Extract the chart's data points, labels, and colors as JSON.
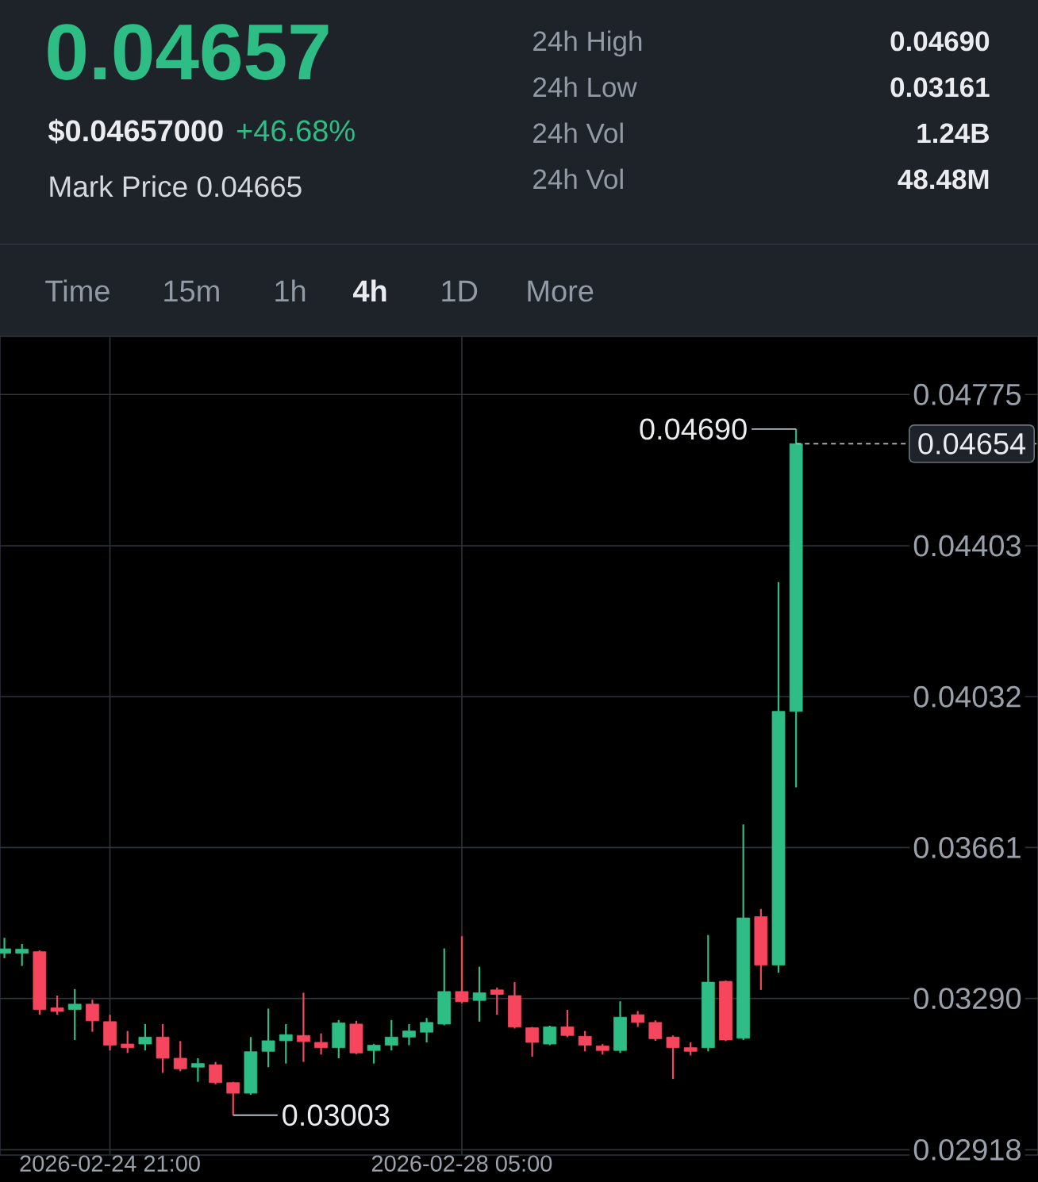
{
  "chart_data": {
    "type": "candlestick",
    "title": "0.04657",
    "annotations": [
      "$0.04657000",
      "+46.68%",
      "Mark Price 0.04665",
      "24h High",
      "0.04690",
      "24h Low",
      "0.03161",
      "24h Vol",
      "1.24B",
      "24h Vol",
      "48.48M",
      "Time",
      "15m",
      "1h",
      "4h",
      "1D",
      "More",
      {
        "text": "0.04690",
        "x": "2026-03-03T09:00",
        "y": 0.0469
      },
      {
        "text": "0.03003",
        "x": "2026-02-26T01:00",
        "y": 0.03003
      }
    ],
    "x": [
      "2026-02-23T21:00",
      "2026-02-24T01:00",
      "2026-02-24T05:00",
      "2026-02-24T09:00",
      "2026-02-24T13:00",
      "2026-02-24T17:00",
      "2026-02-24T21:00",
      "2026-02-25T01:00",
      "2026-02-25T05:00",
      "2026-02-25T09:00",
      "2026-02-25T13:00",
      "2026-02-25T17:00",
      "2026-02-25T21:00",
      "2026-02-26T01:00",
      "2026-02-26T05:00",
      "2026-02-26T09:00",
      "2026-02-26T13:00",
      "2026-02-26T17:00",
      "2026-02-26T21:00",
      "2026-02-27T01:00",
      "2026-02-27T05:00",
      "2026-02-27T09:00",
      "2026-02-27T13:00",
      "2026-02-27T17:00",
      "2026-02-27T21:00",
      "2026-02-28T01:00",
      "2026-02-28T05:00",
      "2026-02-28T09:00",
      "2026-02-28T13:00",
      "2026-02-28T17:00",
      "2026-02-28T21:00",
      "2026-03-01T01:00",
      "2026-03-01T05:00",
      "2026-03-01T09:00",
      "2026-03-01T13:00",
      "2026-03-01T17:00",
      "2026-03-01T21:00",
      "2026-03-02T01:00",
      "2026-03-02T05:00",
      "2026-03-02T09:00",
      "2026-03-02T13:00",
      "2026-03-02T17:00",
      "2026-03-02T21:00",
      "2026-03-03T01:00",
      "2026-03-03T05:00",
      "2026-03-03T09:00"
    ],
    "ohlc": [
      [
        0.03401,
        0.03439,
        0.03389,
        0.03412
      ],
      [
        0.03401,
        0.03424,
        0.0337,
        0.03411
      ],
      [
        0.03405,
        0.03408,
        0.0325,
        0.03263
      ],
      [
        0.03267,
        0.03297,
        0.0325,
        0.03258
      ],
      [
        0.03263,
        0.03313,
        0.03188,
        0.03276
      ],
      [
        0.03276,
        0.03287,
        0.03208,
        0.03235
      ],
      [
        0.03233,
        0.0325,
        0.03162,
        0.03175
      ],
      [
        0.03178,
        0.0321,
        0.03156,
        0.03169
      ],
      [
        0.03178,
        0.03227,
        0.03162,
        0.03195
      ],
      [
        0.03195,
        0.03227,
        0.03107,
        0.03143
      ],
      [
        0.03143,
        0.03185,
        0.03111,
        0.03117
      ],
      [
        0.03121,
        0.03143,
        0.03085,
        0.0313
      ],
      [
        0.03127,
        0.03134,
        0.03079,
        0.03083
      ],
      [
        0.03083,
        0.03085,
        0.03003,
        0.03057
      ],
      [
        0.03057,
        0.03195,
        0.03053,
        0.03159
      ],
      [
        0.0316,
        0.03265,
        0.03121,
        0.03186
      ],
      [
        0.03186,
        0.03227,
        0.0313,
        0.03201
      ],
      [
        0.03199,
        0.03304,
        0.03134,
        0.03184
      ],
      [
        0.03182,
        0.03204,
        0.03152,
        0.03169
      ],
      [
        0.03169,
        0.03237,
        0.03143,
        0.0323
      ],
      [
        0.03227,
        0.03235,
        0.03153,
        0.03156
      ],
      [
        0.03162,
        0.03178,
        0.0313,
        0.03175
      ],
      [
        0.03175,
        0.03237,
        0.03162,
        0.03195
      ],
      [
        0.03195,
        0.03227,
        0.03175,
        0.0321
      ],
      [
        0.03207,
        0.03242,
        0.03182,
        0.03231
      ],
      [
        0.03227,
        0.03413,
        0.03224,
        0.03307
      ],
      [
        0.03307,
        0.03443,
        0.03278,
        0.03282
      ],
      [
        0.03285,
        0.03368,
        0.03233,
        0.03304
      ],
      [
        0.03311,
        0.03317,
        0.0325,
        0.033
      ],
      [
        0.03297,
        0.0333,
        0.03216,
        0.0322
      ],
      [
        0.03218,
        0.0322,
        0.03147,
        0.03182
      ],
      [
        0.03178,
        0.03223,
        0.03175,
        0.0322
      ],
      [
        0.0322,
        0.03262,
        0.03195,
        0.03199
      ],
      [
        0.03197,
        0.0321,
        0.0316,
        0.03175
      ],
      [
        0.03173,
        0.03178,
        0.03152,
        0.03162
      ],
      [
        0.03162,
        0.03283,
        0.03156,
        0.03244
      ],
      [
        0.0325,
        0.03259,
        0.0322,
        0.03231
      ],
      [
        0.03231,
        0.03236,
        0.03186,
        0.03191
      ],
      [
        0.03195,
        0.03199,
        0.03092,
        0.03169
      ],
      [
        0.03169,
        0.03182,
        0.0315,
        0.0316
      ],
      [
        0.03169,
        0.03446,
        0.0316,
        0.0333
      ],
      [
        0.03332,
        0.03334,
        0.03185,
        0.03188
      ],
      [
        0.03192,
        0.03718,
        0.03188,
        0.03488
      ],
      [
        0.03491,
        0.0351,
        0.03311,
        0.03372
      ],
      [
        0.03372,
        0.04314,
        0.03353,
        0.03996
      ],
      [
        0.03996,
        0.0469,
        0.03809,
        0.04654
      ]
    ],
    "colors": [
      "#2ebd85",
      "#2ebd85",
      "#f6465d",
      "#f6465d",
      "#2ebd85",
      "#f6465d",
      "#f6465d",
      "#f6465d",
      "#2ebd85",
      "#f6465d",
      "#f6465d",
      "#2ebd85",
      "#f6465d",
      "#f6465d",
      "#2ebd85",
      "#2ebd85",
      "#2ebd85",
      "#f6465d",
      "#f6465d",
      "#2ebd85",
      "#f6465d",
      "#2ebd85",
      "#2ebd85",
      "#2ebd85",
      "#2ebd85",
      "#2ebd85",
      "#f6465d",
      "#2ebd85",
      "#f6465d",
      "#f6465d",
      "#f6465d",
      "#2ebd85",
      "#f6465d",
      "#f6465d",
      "#f6465d",
      "#2ebd85",
      "#f6465d",
      "#f6465d",
      "#f6465d",
      "#f6465d",
      "#2ebd85",
      "#f6465d",
      "#2ebd85",
      "#f6465d",
      "#2ebd85",
      "#2ebd85"
    ],
    "xlim": [
      "2026-02-23T20:00",
      "2026-03-05T16:00"
    ],
    "xticks": [
      {
        "value": "2026-02-24T21:00",
        "label": "2026-02-24 21:00"
      },
      {
        "value": "2026-02-28T05:00",
        "label": "2026-02-28 05:00"
      }
    ],
    "ylim": [
      0.02905,
      0.04918
    ],
    "yticks": [
      0.02918,
      {
        "value": 0.0329,
        "label": "0.03290"
      },
      0.03661,
      0.04032,
      0.04403,
      0.04775
    ],
    "ref_lines": [
      {
        "axis": "y",
        "value": 0.04654,
        "label": "0.04654",
        "line_style": "dashed"
      }
    ],
    "grid": true
  }
}
